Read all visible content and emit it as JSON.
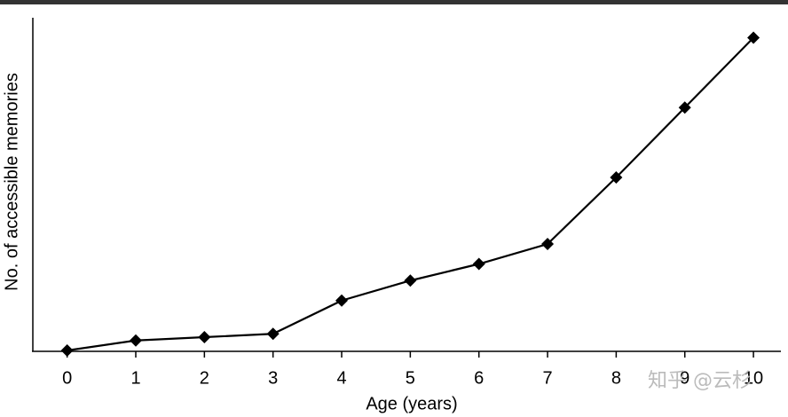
{
  "chart_data": {
    "type": "line",
    "xlabel": "Age (years)",
    "ylabel": "No. of accessible memories",
    "x": [
      0,
      1,
      2,
      3,
      4,
      5,
      6,
      7,
      8,
      9,
      10
    ],
    "series": [
      {
        "color": "#000000",
        "values": [
          0,
          3,
          4,
          5,
          15,
          21,
          26,
          32,
          52,
          73,
          94
        ]
      }
    ],
    "xlim": [
      -0.5,
      10.4
    ],
    "xticks": [
      0,
      1,
      2,
      3,
      4,
      5,
      6,
      7,
      8,
      9,
      10
    ],
    "ylim": [
      0,
      100
    ],
    "watermark": "知乎 @云杉"
  }
}
